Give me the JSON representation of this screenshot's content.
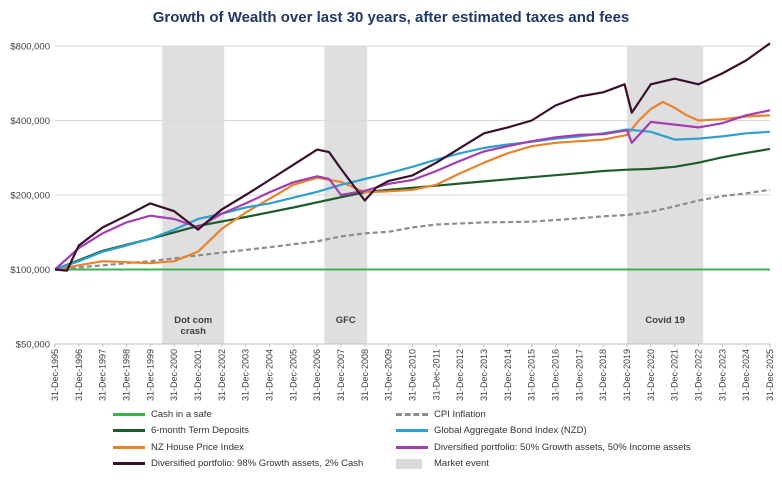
{
  "chart_data": {
    "type": "line",
    "title": "Growth of Wealth over last 30 years, after estimated taxes and fees",
    "y_scale": "log",
    "ylim": [
      50000,
      800000
    ],
    "y_ticks": [
      50000,
      100000,
      200000,
      400000,
      800000
    ],
    "y_tick_labels": [
      "$50,000",
      "$100,000",
      "$200,000",
      "$400,000",
      "$800,000"
    ],
    "x_tick_labels": [
      "31-Dec-1995",
      "31-Dec-1996",
      "31-Dec-1997",
      "31-Dec-1998",
      "31-Dec-1999",
      "31-Dec-2000",
      "31-Dec-2001",
      "31-Dec-2002",
      "31-Dec-2003",
      "31-Dec-2004",
      "31-Dec-2005",
      "31-Dec-2006",
      "31-Dec-2007",
      "31-Dec-2008",
      "31-Dec-2009",
      "31-Dec-2010",
      "31-Dec-2011",
      "31-Dec-2012",
      "31-Dec-2013",
      "31-Dec-2014",
      "31-Dec-2015",
      "31-Dec-2016",
      "31-Dec-2017",
      "31-Dec-2018",
      "31-Dec-2019",
      "31-Dec-2020",
      "31-Dec-2021",
      "31-Dec-2022",
      "31-Dec-2023",
      "31-Dec-2024",
      "31-Dec-2025"
    ],
    "xlim": [
      1996,
      2026
    ],
    "grid": "horizontal",
    "legend_position": "bottom",
    "market_events": [
      {
        "label": "Dot com crash",
        "start": 2000.5,
        "end": 2003.1
      },
      {
        "label": "GFC",
        "start": 2007.3,
        "end": 2009.1
      },
      {
        "label": "Covid 19",
        "start": 2020.0,
        "end": 2023.2
      }
    ],
    "series": [
      {
        "name": "Cash in a safe",
        "color": "#3cb04a",
        "dash": false,
        "x": [
          1996,
          2026
        ],
        "y": [
          100000,
          100000
        ]
      },
      {
        "name": "CPI Inflation",
        "color": "#8c8c8c",
        "dash": true,
        "x": [
          1996,
          1998,
          2000,
          2001,
          2002,
          2003,
          2005,
          2007,
          2008,
          2009,
          2010,
          2011,
          2012,
          2014,
          2016,
          2018,
          2019,
          2020,
          2021,
          2022,
          2023,
          2024,
          2025,
          2026
        ],
        "y": [
          100000,
          104000,
          108000,
          111000,
          114000,
          117000,
          123000,
          130000,
          136000,
          140000,
          142000,
          148000,
          152000,
          155000,
          156000,
          161000,
          164000,
          166000,
          171000,
          180000,
          190000,
          198000,
          203000,
          210000
        ]
      },
      {
        "name": "6-month Term Deposits",
        "color": "#1e5c2a",
        "dash": false,
        "x": [
          1996,
          1998,
          2000,
          2002,
          2004,
          2006,
          2008,
          2009,
          2010,
          2012,
          2014,
          2016,
          2018,
          2019,
          2020,
          2021,
          2022,
          2023,
          2024,
          2025,
          2026
        ],
        "y": [
          100000,
          119000,
          133000,
          150000,
          163000,
          178000,
          196000,
          205000,
          210000,
          218000,
          227000,
          236000,
          245000,
          250000,
          253000,
          255000,
          260000,
          270000,
          284000,
          296000,
          307000
        ]
      },
      {
        "name": "NZ House Price Index",
        "color": "#e8832c",
        "dash": false,
        "x": [
          1996,
          1997,
          1998,
          1999,
          2000,
          2001,
          2002,
          2003,
          2004,
          2005,
          2006,
          2007,
          2008,
          2009,
          2010,
          2011,
          2012,
          2013,
          2014,
          2015,
          2016,
          2017,
          2018,
          2019,
          2020,
          2020.5,
          2021,
          2021.5,
          2022,
          2022.5,
          2023,
          2024,
          2025,
          2026
        ],
        "y": [
          100000,
          104000,
          108000,
          107000,
          106000,
          108000,
          118000,
          146000,
          170000,
          193000,
          220000,
          235000,
          226000,
          205000,
          207000,
          210000,
          220000,
          245000,
          270000,
          295000,
          315000,
          325000,
          330000,
          335000,
          350000,
          400000,
          445000,
          475000,
          450000,
          420000,
          400000,
          405000,
          415000,
          420000
        ]
      },
      {
        "name": "Global Aggregate Bond Index (NZD)",
        "color": "#2f9fd0",
        "dash": false,
        "x": [
          1996,
          1997,
          1998,
          1999,
          2000,
          2001,
          2002,
          2003,
          2004,
          2005,
          2006,
          2007,
          2008,
          2009,
          2010,
          2011,
          2012,
          2013,
          2014,
          2015,
          2016,
          2017,
          2018,
          2019,
          2020,
          2021,
          2022,
          2023,
          2024,
          2025,
          2026
        ],
        "y": [
          100000,
          108000,
          118000,
          125000,
          133000,
          145000,
          160000,
          168000,
          178000,
          185000,
          195000,
          206000,
          220000,
          232000,
          245000,
          260000,
          278000,
          295000,
          310000,
          320000,
          328000,
          338000,
          345000,
          355000,
          368000,
          360000,
          335000,
          338000,
          345000,
          355000,
          360000
        ]
      },
      {
        "name": "Diversified portfolio: 50% Growth assets, 50% Income assets",
        "color": "#a23fb0",
        "dash": false,
        "x": [
          1996,
          1997,
          1998,
          1999,
          2000,
          2001,
          2002,
          2003,
          2004,
          2005,
          2006,
          2007,
          2007.5,
          2008,
          2009,
          2010,
          2011,
          2012,
          2013,
          2014,
          2015,
          2016,
          2017,
          2018,
          2019,
          2020,
          2020.2,
          2021,
          2022,
          2023,
          2024,
          2025,
          2026
        ],
        "y": [
          100000,
          122000,
          140000,
          155000,
          165000,
          160000,
          148000,
          168000,
          185000,
          205000,
          225000,
          238000,
          232000,
          200000,
          208000,
          222000,
          230000,
          250000,
          275000,
          300000,
          315000,
          330000,
          342000,
          350000,
          352000,
          365000,
          325000,
          395000,
          385000,
          375000,
          390000,
          420000,
          440000
        ]
      },
      {
        "name": "Diversified portfolio: 98% Growth assets, 2% Cash",
        "color": "#3a0f2e",
        "dash": false,
        "x": [
          1996,
          1996.5,
          1997,
          1998,
          1999,
          2000,
          2001,
          2002,
          2003,
          2004,
          2005,
          2006,
          2007,
          2007.5,
          2008,
          2009,
          2009.5,
          2010,
          2011,
          2012,
          2013,
          2014,
          2015,
          2016,
          2017,
          2018,
          2019,
          2019.9,
          2020.2,
          2021,
          2022,
          2023,
          2024,
          2025,
          2026
        ],
        "y": [
          100000,
          99000,
          125000,
          148000,
          165000,
          185000,
          172000,
          145000,
          175000,
          200000,
          230000,
          265000,
          305000,
          298000,
          255000,
          190000,
          215000,
          228000,
          240000,
          270000,
          310000,
          355000,
          375000,
          400000,
          460000,
          500000,
          520000,
          560000,
          430000,
          560000,
          590000,
          560000,
          620000,
          700000,
          820000
        ]
      }
    ]
  },
  "legend": [
    {
      "label": "Cash in a safe",
      "color": "#3cb04a",
      "style": "solid"
    },
    {
      "label": "CPI Inflation",
      "color": "#8c8c8c",
      "style": "dash"
    },
    {
      "label": "6-month Term Deposits",
      "color": "#1e5c2a",
      "style": "solid"
    },
    {
      "label": "Global Aggregate Bond Index (NZD)",
      "color": "#2f9fd0",
      "style": "solid"
    },
    {
      "label": "NZ House Price Index",
      "color": "#e8832c",
      "style": "solid"
    },
    {
      "label": "Diversified portfolio: 50% Growth assets, 50% Income assets",
      "color": "#a23fb0",
      "style": "solid"
    },
    {
      "label": "Diversified portfolio: 98% Growth assets, 2% Cash",
      "color": "#3a0f2e",
      "style": "solid"
    },
    {
      "label": "Market event",
      "color": "#d9d9d9",
      "style": "box"
    }
  ]
}
